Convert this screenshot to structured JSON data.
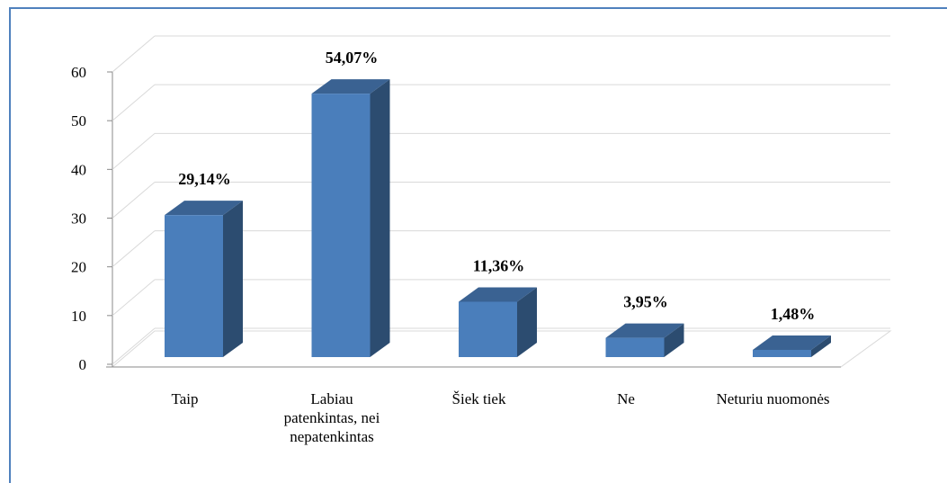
{
  "chart_data": {
    "type": "bar3d",
    "categories": [
      "Taip",
      "Labiau patenkintas, nei nepatenkintas",
      "Šiek tiek",
      "Ne",
      "Neturiu nuomonės"
    ],
    "values": [
      29.14,
      54.07,
      11.36,
      3.95,
      1.48
    ],
    "value_labels": [
      "29,14%",
      "54,07%",
      "11,36%",
      "3,95%",
      "1,48%"
    ],
    "color": "#4a7ebb",
    "ylim": [
      0,
      60
    ],
    "yticks": [
      0,
      10,
      20,
      30,
      40,
      50,
      60
    ],
    "grid": true
  }
}
